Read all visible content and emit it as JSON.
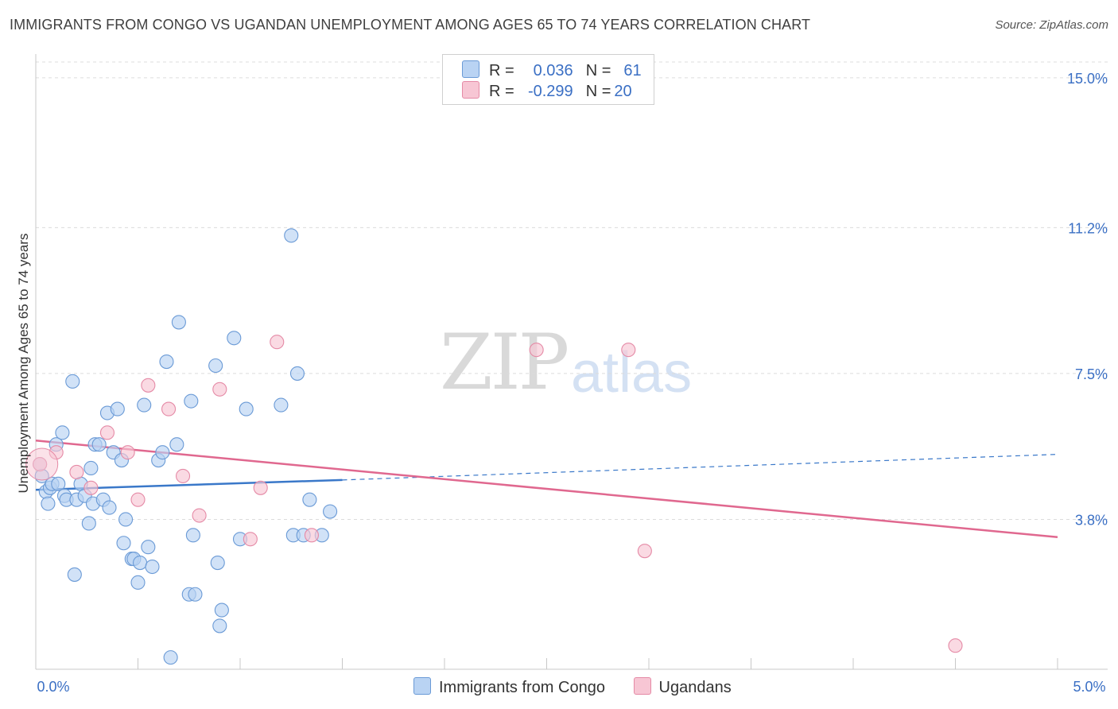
{
  "header": {
    "title": "IMMIGRANTS FROM CONGO VS UGANDAN UNEMPLOYMENT AMONG AGES 65 TO 74 YEARS CORRELATION CHART",
    "source": "Source: ZipAtlas.com"
  },
  "watermark": {
    "zip": "ZIP",
    "atlas": "atlas"
  },
  "legend": {
    "rows": [
      {
        "r_label": "R =",
        "r_value": "0.036",
        "n_label": "N =",
        "n_value": "61"
      },
      {
        "r_label": "R =",
        "r_value": "-0.299",
        "n_label": "N =",
        "n_value": "20"
      }
    ]
  },
  "bottom_legend": {
    "series1": "Immigrants from Congo",
    "series2": "Ugandans"
  },
  "colors": {
    "blue_fill": "#b9d3f3",
    "blue_stroke": "#6a9ad6",
    "blue_line": "#3a78c9",
    "pink_fill": "#f7c6d4",
    "pink_stroke": "#e58aa6",
    "pink_line": "#e0688f",
    "axis_text": "#3a6fc4",
    "grid": "#dcdcdc"
  },
  "chart_data": {
    "type": "scatter",
    "title": "IMMIGRANTS FROM CONGO VS UGANDAN UNEMPLOYMENT AMONG AGES 65 TO 74 YEARS CORRELATION CHART",
    "xlabel": "",
    "ylabel": "Unemployment Among Ages 65 to 74 years",
    "xlim": [
      0,
      5
    ],
    "ylim": [
      0,
      15.4
    ],
    "x_tick_labels": [
      "0.0%",
      "5.0%"
    ],
    "x_tick_values": [
      0,
      5
    ],
    "y_ticks": [
      3.8,
      7.5,
      11.2,
      15.0
    ],
    "y_tick_labels": [
      "3.8%",
      "7.5%",
      "11.2%",
      "15.0%"
    ],
    "series": [
      {
        "name": "Immigrants from Congo",
        "color": "#6a9ad6",
        "points": [
          [
            0.02,
            5.2
          ],
          [
            0.03,
            4.9
          ],
          [
            0.05,
            4.5
          ],
          [
            0.06,
            4.2
          ],
          [
            0.07,
            4.6
          ],
          [
            0.08,
            4.7
          ],
          [
            0.1,
            5.7
          ],
          [
            0.11,
            4.7
          ],
          [
            0.13,
            6.0
          ],
          [
            0.14,
            4.4
          ],
          [
            0.15,
            4.3
          ],
          [
            0.18,
            7.3
          ],
          [
            0.19,
            2.4
          ],
          [
            0.2,
            4.3
          ],
          [
            0.22,
            4.7
          ],
          [
            0.24,
            4.4
          ],
          [
            0.26,
            3.7
          ],
          [
            0.27,
            5.1
          ],
          [
            0.28,
            4.2
          ],
          [
            0.29,
            5.7
          ],
          [
            0.31,
            5.7
          ],
          [
            0.33,
            4.3
          ],
          [
            0.35,
            6.5
          ],
          [
            0.36,
            4.1
          ],
          [
            0.38,
            5.5
          ],
          [
            0.4,
            6.6
          ],
          [
            0.42,
            5.3
          ],
          [
            0.44,
            3.8
          ],
          [
            0.43,
            3.2
          ],
          [
            0.47,
            2.8
          ],
          [
            0.48,
            2.8
          ],
          [
            0.5,
            2.2
          ],
          [
            0.51,
            2.7
          ],
          [
            0.53,
            6.7
          ],
          [
            0.55,
            3.1
          ],
          [
            0.57,
            2.6
          ],
          [
            0.6,
            5.3
          ],
          [
            0.62,
            5.5
          ],
          [
            0.64,
            7.8
          ],
          [
            0.69,
            5.7
          ],
          [
            0.7,
            8.8
          ],
          [
            0.75,
            1.9
          ],
          [
            0.76,
            6.8
          ],
          [
            0.77,
            3.4
          ],
          [
            0.78,
            1.9
          ],
          [
            0.88,
            7.7
          ],
          [
            0.89,
            2.7
          ],
          [
            0.9,
            1.1
          ],
          [
            0.91,
            1.5
          ],
          [
            0.97,
            8.4
          ],
          [
            1.0,
            3.3
          ],
          [
            1.03,
            6.6
          ],
          [
            1.2,
            6.7
          ],
          [
            1.25,
            11.0
          ],
          [
            1.26,
            3.4
          ],
          [
            1.28,
            7.5
          ],
          [
            1.31,
            3.4
          ],
          [
            1.34,
            4.3
          ],
          [
            1.4,
            3.4
          ],
          [
            1.44,
            4.0
          ],
          [
            0.66,
            0.3
          ]
        ]
      },
      {
        "name": "Ugandans",
        "color": "#e58aa6",
        "points": [
          [
            0.02,
            5.2
          ],
          [
            0.1,
            5.5
          ],
          [
            0.2,
            5.0
          ],
          [
            0.27,
            4.6
          ],
          [
            0.35,
            6.0
          ],
          [
            0.45,
            5.5
          ],
          [
            0.5,
            4.3
          ],
          [
            0.55,
            7.2
          ],
          [
            0.65,
            6.6
          ],
          [
            0.72,
            4.9
          ],
          [
            0.8,
            3.9
          ],
          [
            0.9,
            7.1
          ],
          [
            1.05,
            3.3
          ],
          [
            1.1,
            4.6
          ],
          [
            1.18,
            8.3
          ],
          [
            1.35,
            3.4
          ],
          [
            2.45,
            8.1
          ],
          [
            2.9,
            8.1
          ],
          [
            2.98,
            3.0
          ],
          [
            4.5,
            0.6
          ]
        ]
      }
    ],
    "trend_lines": [
      {
        "series": "Immigrants from Congo",
        "x": [
          0,
          1.5
        ],
        "y": [
          4.55,
          4.8
        ],
        "dashed_extension": [
          1.5,
          5.0,
          4.8,
          5.45
        ]
      },
      {
        "series": "Ugandans",
        "x": [
          0,
          5.0
        ],
        "y": [
          5.8,
          3.35
        ]
      }
    ]
  }
}
